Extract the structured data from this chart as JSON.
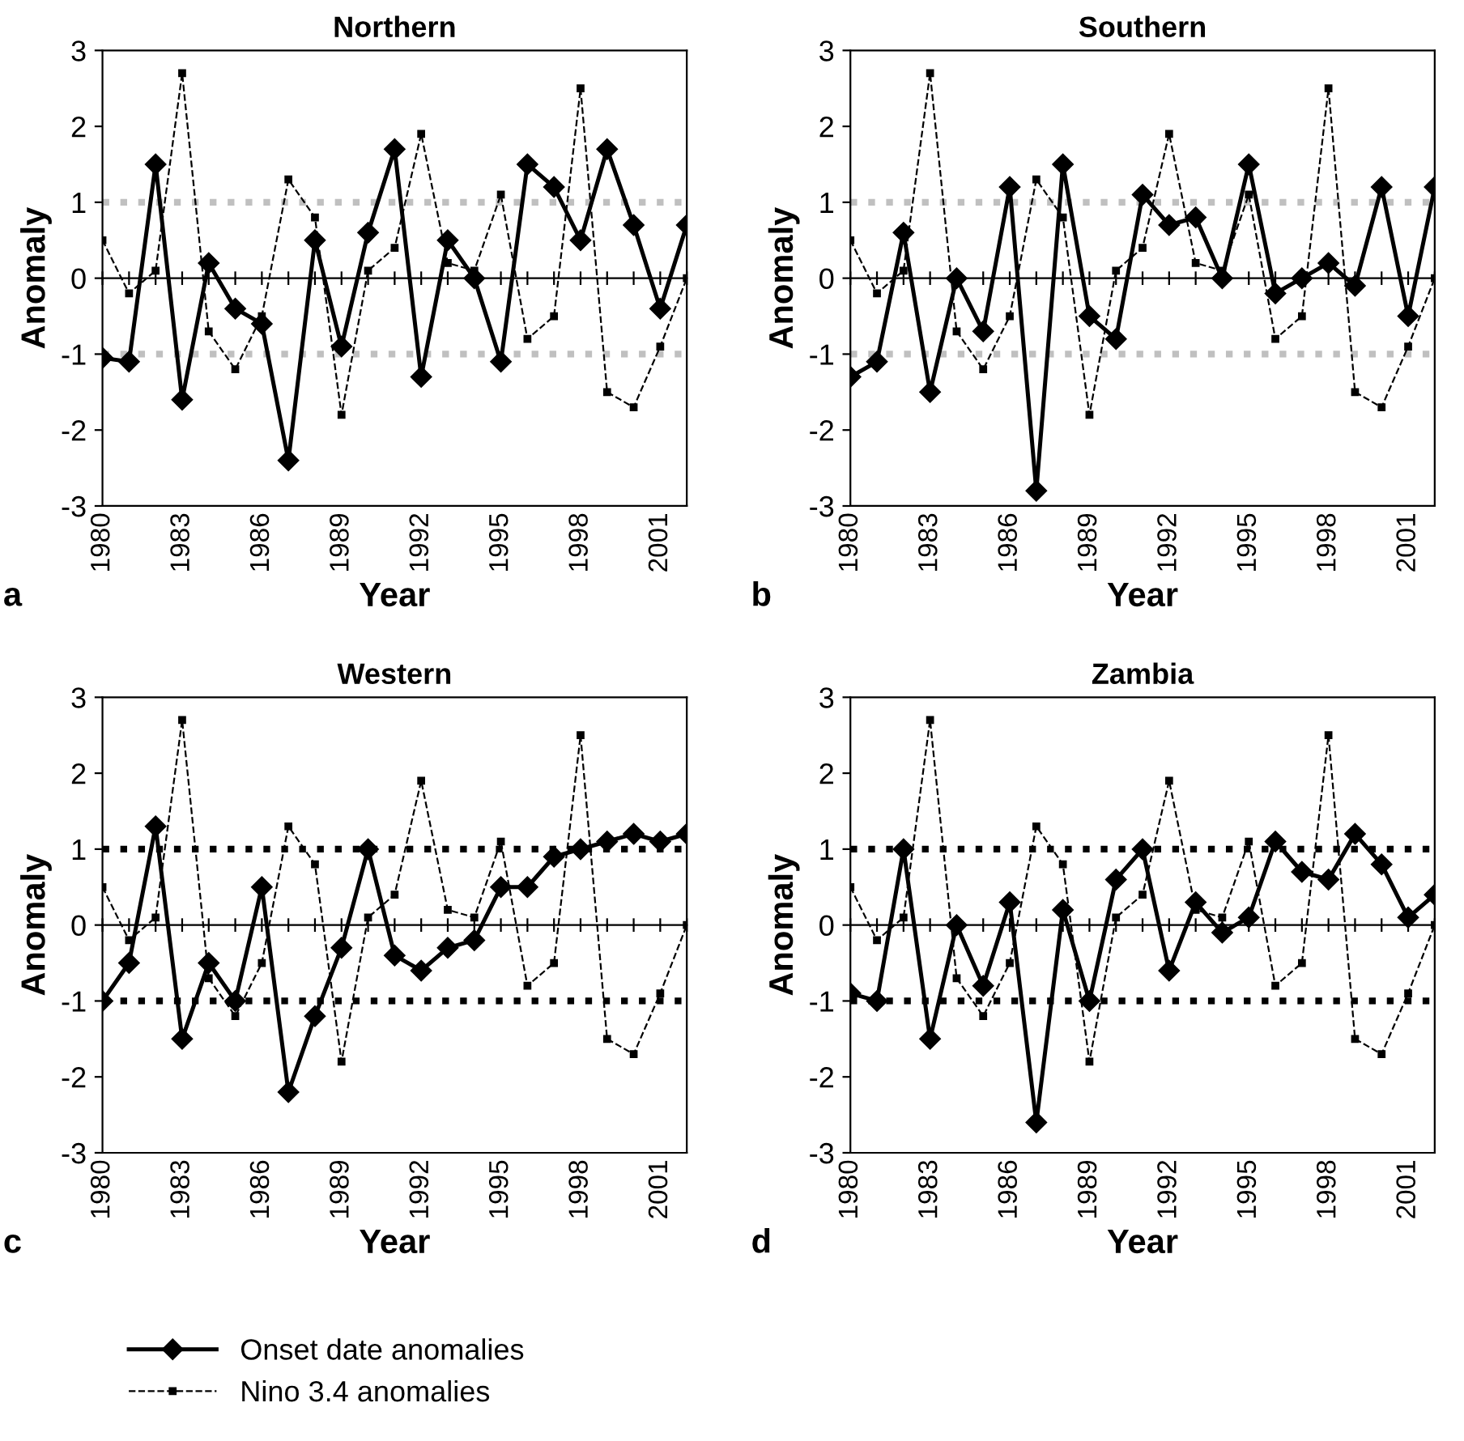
{
  "chart_data": [
    {
      "type": "line",
      "title": "Northern",
      "xlabel": "Year",
      "ylabel": "Anomaly",
      "annotations": [
        "a"
      ],
      "categories": [
        "1980",
        null,
        null,
        "1983",
        null,
        null,
        "1986",
        null,
        null,
        "1989",
        null,
        null,
        "1992",
        null,
        null,
        "1995",
        null,
        null,
        "1998",
        null,
        null,
        "2001",
        null
      ],
      "series": [
        {
          "color": "#000000",
          "line_style": "solid",
          "marker": "diamond",
          "values": [
            -1.05,
            -1.1,
            1.5,
            -1.6,
            0.2,
            -0.4,
            -0.6,
            -2.4,
            0.5,
            -0.9,
            0.6,
            1.7,
            -1.3,
            0.5,
            0.0,
            -1.1,
            1.5,
            1.2,
            0.5,
            1.7,
            0.7,
            -0.4,
            0.7
          ]
        },
        {
          "color": "#000000",
          "line_style": "dashed",
          "marker": "square",
          "values": [
            0.5,
            -0.2,
            0.1,
            2.7,
            -0.7,
            -1.2,
            -0.5,
            1.3,
            0.8,
            -1.8,
            0.1,
            0.4,
            1.9,
            0.2,
            0.1,
            1.1,
            -0.8,
            -0.5,
            2.5,
            -1.5,
            -1.7,
            -0.9,
            0.0
          ]
        }
      ],
      "ylim": [
        -3,
        3
      ],
      "yticks": [
        -3,
        -2,
        -1,
        0,
        1,
        2,
        3
      ],
      "ref_lines": [
        {
          "axis": "y",
          "value": 1,
          "color": "#c0c0c0",
          "line_style": "dotted"
        },
        {
          "axis": "y",
          "value": -1,
          "color": "#c0c0c0",
          "line_style": "dotted"
        }
      ]
    },
    {
      "type": "line",
      "title": "Southern",
      "xlabel": "Year",
      "ylabel": "Anomaly",
      "annotations": [
        "b"
      ],
      "categories": [
        "1980",
        null,
        null,
        "1983",
        null,
        null,
        "1986",
        null,
        null,
        "1989",
        null,
        null,
        "1992",
        null,
        null,
        "1995",
        null,
        null,
        "1998",
        null,
        null,
        "2001",
        null
      ],
      "series": [
        {
          "color": "#000000",
          "line_style": "solid",
          "marker": "diamond",
          "values": [
            -1.3,
            -1.1,
            0.6,
            -1.5,
            0.0,
            -0.7,
            1.2,
            -2.8,
            1.5,
            -0.5,
            -0.8,
            1.1,
            0.7,
            0.8,
            0.0,
            1.5,
            -0.2,
            0.0,
            0.2,
            -0.1,
            1.2,
            -0.5,
            1.2
          ]
        },
        {
          "color": "#000000",
          "line_style": "dashed",
          "marker": "square",
          "values": [
            0.5,
            -0.2,
            0.1,
            2.7,
            -0.7,
            -1.2,
            -0.5,
            1.3,
            0.8,
            -1.8,
            0.1,
            0.4,
            1.9,
            0.2,
            0.1,
            1.1,
            -0.8,
            -0.5,
            2.5,
            -1.5,
            -1.7,
            -0.9,
            0.0
          ]
        }
      ],
      "ylim": [
        -3,
        3
      ],
      "yticks": [
        -3,
        -2,
        -1,
        0,
        1,
        2,
        3
      ],
      "ref_lines": [
        {
          "axis": "y",
          "value": 1,
          "color": "#c0c0c0",
          "line_style": "dotted"
        },
        {
          "axis": "y",
          "value": -1,
          "color": "#c0c0c0",
          "line_style": "dotted"
        }
      ]
    },
    {
      "type": "line",
      "title": "Western",
      "xlabel": "Year",
      "ylabel": "Anomaly",
      "annotations": [
        "c"
      ],
      "legend": "bottom",
      "categories": [
        "1980",
        null,
        null,
        "1983",
        null,
        null,
        "1986",
        null,
        null,
        "1989",
        null,
        null,
        "1992",
        null,
        null,
        "1995",
        null,
        null,
        "1998",
        null,
        null,
        "2001",
        null
      ],
      "series": [
        {
          "name": "Onset date anomalies",
          "color": "#000000",
          "line_style": "solid",
          "marker": "diamond",
          "values": [
            -1.0,
            -0.5,
            1.3,
            -1.5,
            -0.5,
            -1.0,
            0.5,
            -2.2,
            -1.2,
            -0.3,
            1.0,
            -0.4,
            -0.6,
            -0.3,
            -0.2,
            0.5,
            0.5,
            0.9,
            1.0,
            1.1,
            1.2,
            1.1,
            1.2
          ]
        },
        {
          "name": "Nino 3.4 anomalies",
          "color": "#000000",
          "line_style": "dashed",
          "marker": "square",
          "values": [
            0.5,
            -0.2,
            0.1,
            2.7,
            -0.7,
            -1.2,
            -0.5,
            1.3,
            0.8,
            -1.8,
            0.1,
            0.4,
            1.9,
            0.2,
            0.1,
            1.1,
            -0.8,
            -0.5,
            2.5,
            -1.5,
            -1.7,
            -0.9,
            0.0
          ]
        }
      ],
      "ylim": [
        -3,
        3
      ],
      "yticks": [
        -3,
        -2,
        -1,
        0,
        1,
        2,
        3
      ],
      "ref_lines": [
        {
          "axis": "y",
          "value": 1,
          "color": "#000000",
          "line_style": "dotted"
        },
        {
          "axis": "y",
          "value": -1,
          "color": "#000000",
          "line_style": "dotted"
        }
      ]
    },
    {
      "type": "line",
      "title": "Zambia",
      "xlabel": "Year",
      "ylabel": "Anomaly",
      "annotations": [
        "d"
      ],
      "categories": [
        "1980",
        null,
        null,
        "1983",
        null,
        null,
        "1986",
        null,
        null,
        "1989",
        null,
        null,
        "1992",
        null,
        null,
        "1995",
        null,
        null,
        "1998",
        null,
        null,
        "2001",
        null
      ],
      "series": [
        {
          "color": "#000000",
          "line_style": "solid",
          "marker": "diamond",
          "values": [
            -0.9,
            -1.0,
            1.0,
            -1.5,
            0.0,
            -0.8,
            0.3,
            -2.6,
            0.2,
            -1.0,
            0.6,
            1.0,
            -0.6,
            0.3,
            -0.1,
            0.1,
            1.1,
            0.7,
            0.6,
            1.2,
            0.8,
            0.1,
            0.4
          ]
        },
        {
          "color": "#000000",
          "line_style": "dashed",
          "marker": "square",
          "values": [
            0.5,
            -0.2,
            0.1,
            2.7,
            -0.7,
            -1.2,
            -0.5,
            1.3,
            0.8,
            -1.8,
            0.1,
            0.4,
            1.9,
            0.2,
            0.1,
            1.1,
            -0.8,
            -0.5,
            2.5,
            -1.5,
            -1.7,
            -0.9,
            0.0
          ]
        }
      ],
      "ylim": [
        -3,
        3
      ],
      "yticks": [
        -3,
        -2,
        -1,
        0,
        1,
        2,
        3
      ],
      "ref_lines": [
        {
          "axis": "y",
          "value": 1,
          "color": "#000000",
          "line_style": "dotted"
        },
        {
          "axis": "y",
          "value": -1,
          "color": "#000000",
          "line_style": "dotted"
        }
      ]
    }
  ]
}
